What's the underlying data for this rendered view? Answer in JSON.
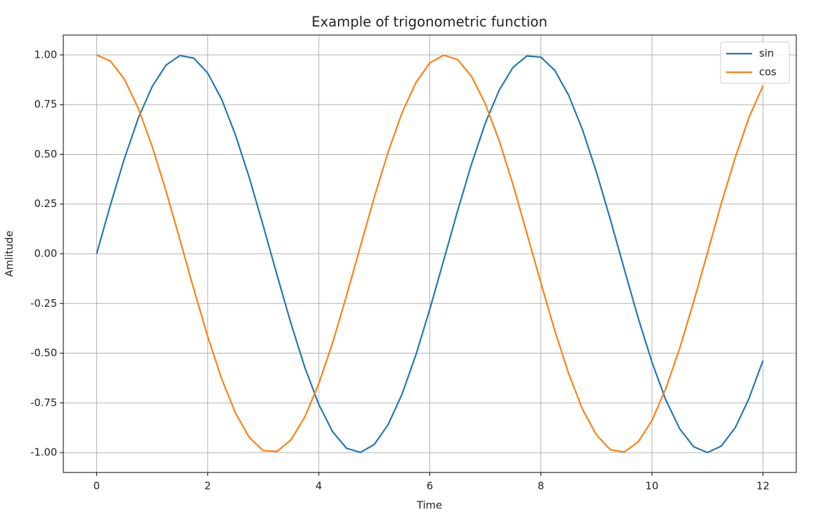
{
  "chart_data": {
    "type": "line",
    "title": "Example of trigonometric function",
    "x_label": "Time",
    "y_label": "Amlitude",
    "x": [
      0,
      0.25,
      0.5,
      0.75,
      1,
      1.25,
      1.5,
      1.75,
      2,
      2.25,
      2.5,
      2.75,
      3,
      3.25,
      3.5,
      3.75,
      4,
      4.25,
      4.5,
      4.75,
      5,
      5.25,
      5.5,
      5.75,
      6,
      6.25,
      6.5,
      6.75,
      7,
      7.25,
      7.5,
      7.75,
      8,
      8.25,
      8.5,
      8.75,
      9,
      9.25,
      9.5,
      9.75,
      10,
      10.25,
      10.5,
      10.75,
      11,
      11.25,
      11.5,
      11.75,
      12
    ],
    "series": [
      {
        "name": "sin",
        "color": "#1f77b4",
        "values": [
          0,
          0.247,
          0.479,
          0.682,
          0.841,
          0.949,
          0.997,
          0.984,
          0.909,
          0.778,
          0.598,
          0.382,
          0.141,
          -0.108,
          -0.351,
          -0.572,
          -0.757,
          -0.895,
          -0.978,
          -0.999,
          -0.959,
          -0.859,
          -0.706,
          -0.508,
          -0.279,
          -0.033,
          0.215,
          0.45,
          0.657,
          0.823,
          0.938,
          0.995,
          0.989,
          0.923,
          0.798,
          0.624,
          0.412,
          0.174,
          -0.075,
          -0.32,
          -0.544,
          -0.735,
          -0.88,
          -0.97,
          -1.0,
          -0.967,
          -0.875,
          -0.727,
          -0.537
        ]
      },
      {
        "name": "cos",
        "color": "#ff7f0e",
        "values": [
          1,
          0.969,
          0.878,
          0.732,
          0.54,
          0.315,
          0.071,
          -0.178,
          -0.416,
          -0.628,
          -0.801,
          -0.924,
          -0.99,
          -0.994,
          -0.936,
          -0.82,
          -0.654,
          -0.447,
          -0.211,
          0.037,
          0.284,
          0.512,
          0.709,
          0.861,
          0.96,
          0.999,
          0.977,
          0.893,
          0.754,
          0.568,
          0.347,
          0.101,
          -0.146,
          -0.386,
          -0.602,
          -0.782,
          -0.911,
          -0.985,
          -0.997,
          -0.947,
          -0.839,
          -0.678,
          -0.476,
          -0.243,
          0.004,
          0.254,
          0.483,
          0.687,
          0.844
        ]
      }
    ],
    "xlim": [
      -0.6,
      12.6
    ],
    "ylim": [
      -1.1,
      1.1
    ],
    "xticks": [
      0,
      2,
      4,
      6,
      8,
      10,
      12
    ],
    "yticks": [
      {
        "value": -1,
        "label": "-1.00"
      },
      {
        "value": -0.75,
        "label": "-0.75"
      },
      {
        "value": -0.5,
        "label": "-0.50"
      },
      {
        "value": -0.25,
        "label": "-0.25"
      },
      {
        "value": 0,
        "label": "0.00"
      },
      {
        "value": 0.25,
        "label": "0.25"
      },
      {
        "value": 0.5,
        "label": "0.50"
      },
      {
        "value": 0.75,
        "label": "0.75"
      },
      {
        "value": 1,
        "label": "1.00"
      }
    ],
    "grid": true,
    "legend": "upper right"
  }
}
